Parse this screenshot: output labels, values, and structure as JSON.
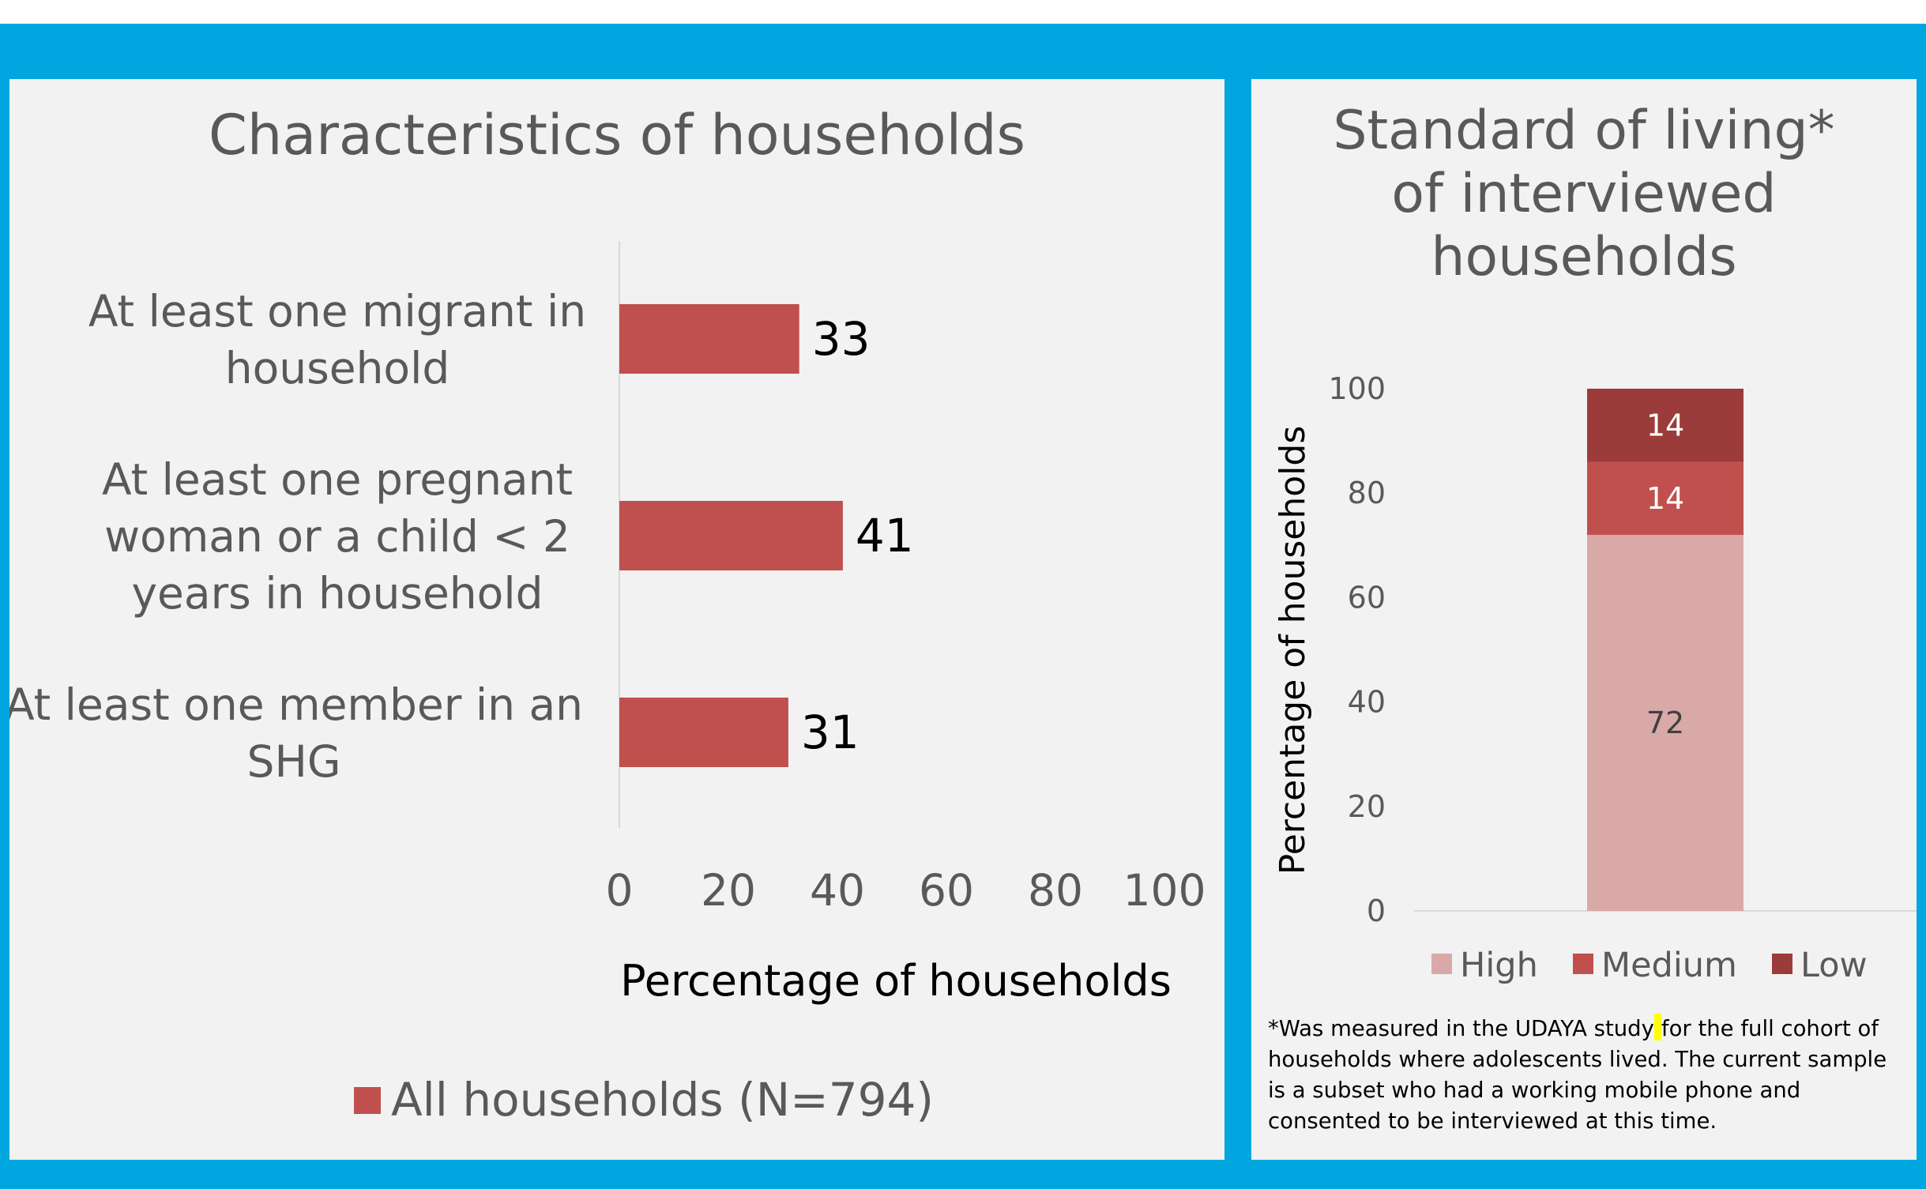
{
  "chart_data": [
    {
      "type": "bar",
      "orientation": "horizontal",
      "title": "Characteristics of households",
      "categories": [
        "At least one migrant in household",
        "At least one pregnant woman or a child < 2 years in household",
        "At least one member in an SHG"
      ],
      "category_lines": [
        [
          "At least one migrant in",
          "household"
        ],
        [
          "At least one pregnant",
          "woman or a child < 2",
          "years in household"
        ],
        [
          "At least one member in an",
          "SHG"
        ]
      ],
      "series": [
        {
          "name": "All households (N=794)",
          "values": [
            33,
            41,
            31
          ],
          "color": "#c0504d"
        }
      ],
      "xlabel": "Percentage of households",
      "xlim": [
        0,
        100
      ],
      "xticks": [
        0,
        20,
        40,
        60,
        80,
        100
      ],
      "data_labels": true,
      "legend_position": "bottom",
      "grid": false
    },
    {
      "type": "bar",
      "stacked": true,
      "title": "Standard of living* of interviewed households",
      "title_lines": [
        "Standard of living*",
        "of interviewed",
        "households"
      ],
      "categories": [
        ""
      ],
      "series": [
        {
          "name": "High",
          "values": [
            72
          ],
          "color": "#d9a9a8",
          "label_color": "#404040"
        },
        {
          "name": "Medium",
          "values": [
            14
          ],
          "color": "#c0504d",
          "label_color": "#ffffff"
        },
        {
          "name": "Low",
          "values": [
            14
          ],
          "color": "#9c3c3a",
          "label_color": "#ffffff"
        }
      ],
      "ylabel": "Percentage of households",
      "ylim": [
        0,
        100
      ],
      "yticks": [
        0,
        20,
        40,
        60,
        80,
        100
      ],
      "data_labels": true,
      "legend_position": "bottom",
      "grid": false
    }
  ],
  "footnote": {
    "before": "*Was measured in the UDAYA study",
    "after": "for the full cohort of households where adolescents lived. The current sample is a subset who had a working mobile phone and consented to be interviewed at this time."
  }
}
